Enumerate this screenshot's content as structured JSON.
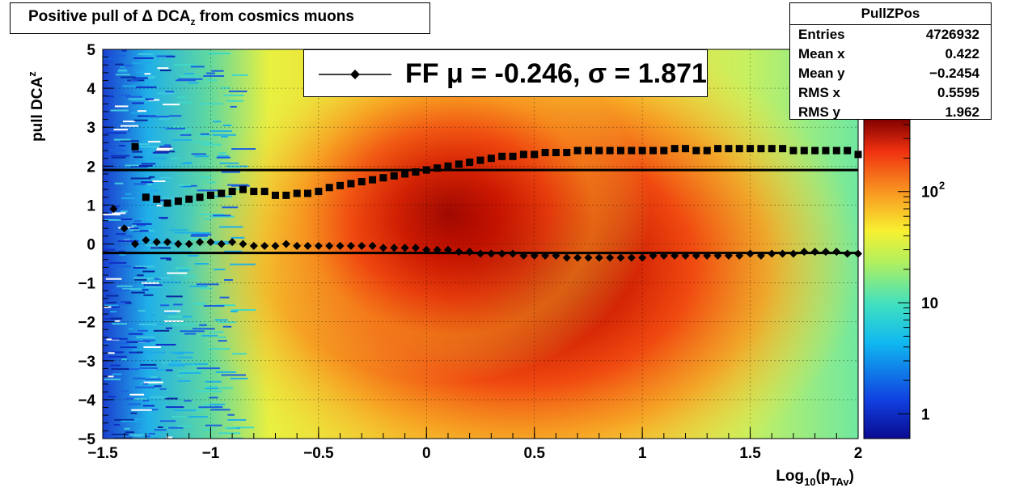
{
  "title": {
    "prefix": "Positive pull of ",
    "symbol": "Δ",
    "main": " DCA",
    "sub": "z",
    "suffix": " from cosmics muons"
  },
  "stats": {
    "name": "PullZPos",
    "rows": [
      {
        "key": "Entries",
        "value": "4726932"
      },
      {
        "key": "Mean x",
        "value": "0.422"
      },
      {
        "key": "Mean y",
        "value": "−0.2454"
      },
      {
        "key": "RMS x",
        "value": "0.5595"
      },
      {
        "key": "RMS y",
        "value": "1.962"
      }
    ]
  },
  "legend": {
    "label_prefix": "FF ",
    "mu_symbol": "μ",
    "mu_text": " = -0.246, ",
    "sigma_symbol": "σ",
    "sigma_text": " =   1.871"
  },
  "axes": {
    "ylabel_main": "pull DCA",
    "ylabel_sub": "z",
    "xlabel_main": "Log",
    "xlabel_sub1": "10",
    "xlabel_mid": "(p",
    "xlabel_sub2": "TAv",
    "xlabel_end": ")"
  },
  "chart_data": {
    "type": "heatmap",
    "xlim": [
      -1.5,
      2
    ],
    "ylim": [
      -5,
      5
    ],
    "x_ticks": [
      "−1.5",
      "−1",
      "−0.5",
      "0",
      "0.5",
      "1",
      "1.5",
      "2"
    ],
    "x_tick_values": [
      -1.5,
      -1,
      -0.5,
      0,
      0.5,
      1,
      1.5,
      2
    ],
    "y_ticks": [
      "5",
      "4",
      "3",
      "2",
      "1",
      "0",
      "−1",
      "−2",
      "−3",
      "−4",
      "−5"
    ],
    "y_tick_values": [
      5,
      4,
      3,
      2,
      1,
      0,
      -1,
      -2,
      -3,
      -4,
      -5
    ],
    "grid": true,
    "colorbar": {
      "scale": "log",
      "ticks": [
        {
          "label": "1",
          "value": 1
        },
        {
          "label": "10",
          "value": 10
        },
        {
          "label": "10",
          "sup": "2",
          "value": 100
        }
      ]
    },
    "lines": [
      {
        "name": "sigma",
        "y": 1.9
      },
      {
        "name": "mu",
        "y": -0.23
      }
    ],
    "mean_series": {
      "x": [
        -1.45,
        -1.4,
        -1.35,
        -1.3,
        -1.25,
        -1.2,
        -1.15,
        -1.1,
        -1.05,
        -1.0,
        -0.95,
        -0.9,
        -0.85,
        -0.8,
        -0.75,
        -0.7,
        -0.65,
        -0.6,
        -0.55,
        -0.5,
        -0.45,
        -0.4,
        -0.35,
        -0.3,
        -0.25,
        -0.2,
        -0.15,
        -0.1,
        -0.05,
        0.0,
        0.05,
        0.1,
        0.15,
        0.2,
        0.25,
        0.3,
        0.35,
        0.4,
        0.45,
        0.5,
        0.55,
        0.6,
        0.65,
        0.7,
        0.75,
        0.8,
        0.85,
        0.9,
        0.95,
        1.0,
        1.05,
        1.1,
        1.15,
        1.2,
        1.25,
        1.3,
        1.35,
        1.4,
        1.45,
        1.5,
        1.55,
        1.6,
        1.65,
        1.7,
        1.75,
        1.8,
        1.85,
        1.9,
        1.95,
        2.0
      ],
      "y": [
        0.9,
        0.4,
        0.0,
        0.1,
        0.05,
        0.05,
        0.0,
        0.0,
        0.05,
        0.05,
        0.0,
        0.05,
        0.0,
        -0.05,
        -0.05,
        -0.05,
        0.0,
        -0.05,
        -0.05,
        -0.05,
        -0.05,
        -0.05,
        -0.05,
        -0.05,
        -0.05,
        -0.1,
        -0.1,
        -0.1,
        -0.1,
        -0.15,
        -0.15,
        -0.15,
        -0.2,
        -0.2,
        -0.25,
        -0.25,
        -0.25,
        -0.25,
        -0.3,
        -0.3,
        -0.3,
        -0.3,
        -0.35,
        -0.35,
        -0.35,
        -0.35,
        -0.35,
        -0.35,
        -0.35,
        -0.35,
        -0.3,
        -0.3,
        -0.3,
        -0.3,
        -0.3,
        -0.3,
        -0.3,
        -0.3,
        -0.3,
        -0.25,
        -0.3,
        -0.25,
        -0.25,
        -0.25,
        -0.2,
        -0.2,
        -0.2,
        -0.2,
        -0.25,
        -0.25
      ]
    },
    "sigma_series": {
      "x": [
        -1.35,
        -1.3,
        -1.25,
        -1.2,
        -1.15,
        -1.1,
        -1.05,
        -1.0,
        -0.95,
        -0.9,
        -0.85,
        -0.8,
        -0.75,
        -0.7,
        -0.65,
        -0.6,
        -0.55,
        -0.5,
        -0.45,
        -0.4,
        -0.35,
        -0.3,
        -0.25,
        -0.2,
        -0.15,
        -0.1,
        -0.05,
        0.0,
        0.05,
        0.1,
        0.15,
        0.2,
        0.25,
        0.3,
        0.35,
        0.4,
        0.45,
        0.5,
        0.55,
        0.6,
        0.65,
        0.7,
        0.75,
        0.8,
        0.85,
        0.9,
        0.95,
        1.0,
        1.05,
        1.1,
        1.15,
        1.2,
        1.25,
        1.3,
        1.35,
        1.4,
        1.45,
        1.5,
        1.55,
        1.6,
        1.65,
        1.7,
        1.75,
        1.8,
        1.85,
        1.9,
        1.95,
        2.0
      ],
      "y": [
        2.5,
        1.2,
        1.15,
        1.05,
        1.1,
        1.15,
        1.2,
        1.25,
        1.3,
        1.35,
        1.4,
        1.35,
        1.35,
        1.25,
        1.25,
        1.3,
        1.3,
        1.35,
        1.45,
        1.5,
        1.55,
        1.6,
        1.65,
        1.7,
        1.75,
        1.8,
        1.85,
        1.9,
        1.95,
        2.0,
        2.05,
        2.1,
        2.15,
        2.2,
        2.25,
        2.25,
        2.3,
        2.3,
        2.35,
        2.35,
        2.35,
        2.4,
        2.4,
        2.4,
        2.4,
        2.4,
        2.4,
        2.4,
        2.4,
        2.4,
        2.45,
        2.45,
        2.4,
        2.4,
        2.45,
        2.45,
        2.45,
        2.45,
        2.45,
        2.45,
        2.45,
        2.4,
        2.4,
        2.4,
        2.4,
        2.4,
        2.4,
        2.3
      ]
    }
  }
}
